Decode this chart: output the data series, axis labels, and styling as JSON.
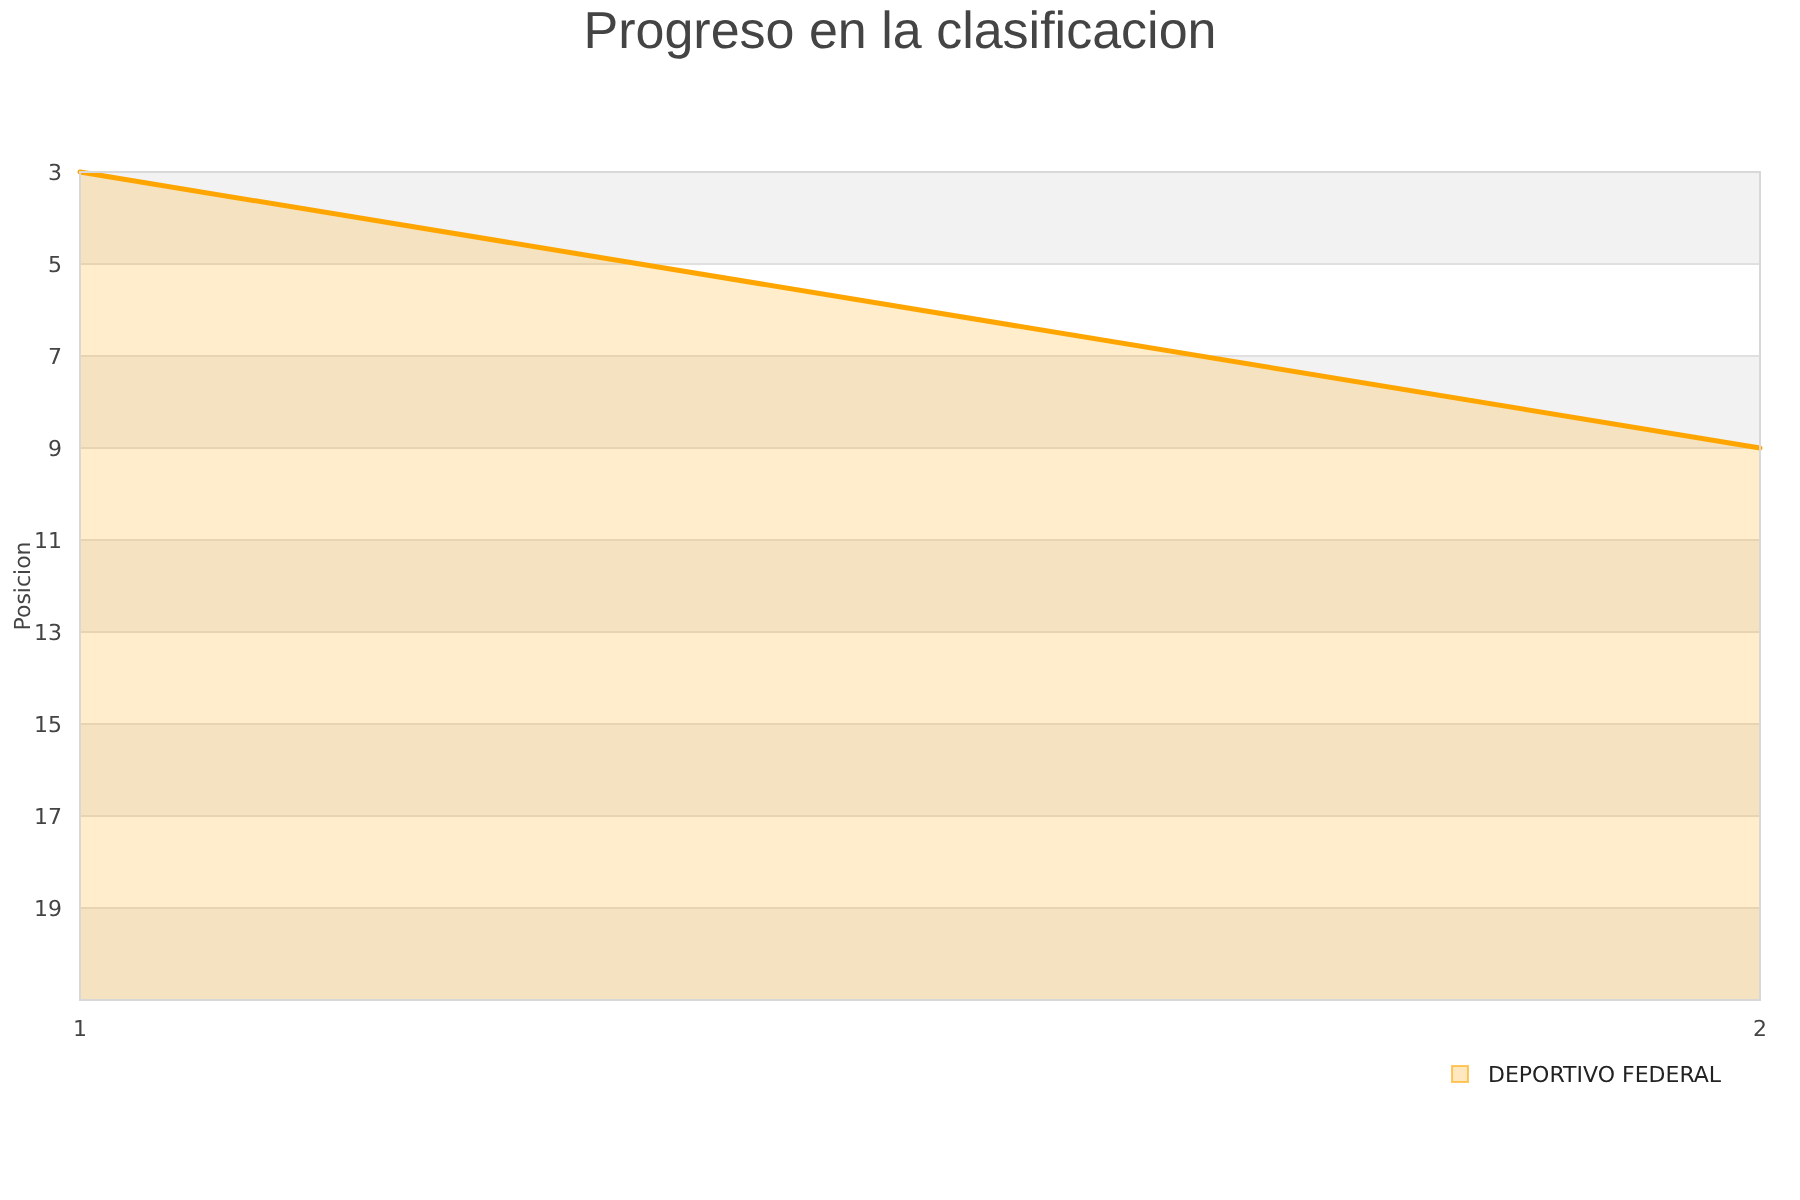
{
  "chart_data": {
    "type": "area",
    "title": "Progreso en la clasificacion",
    "ylabel": "Posicion",
    "x": [
      1,
      2
    ],
    "xlim": [
      1,
      2
    ],
    "xticks": [
      1,
      2
    ],
    "ylim": [
      21,
      3
    ],
    "yticks": [
      3,
      5,
      7,
      9,
      11,
      13,
      15,
      17,
      19
    ],
    "grid": "y",
    "legend": "bottom right",
    "series": [
      {
        "name": "DEPORTIVO FEDERAL",
        "color": "#ffa500",
        "values": [
          3,
          9
        ]
      }
    ]
  }
}
